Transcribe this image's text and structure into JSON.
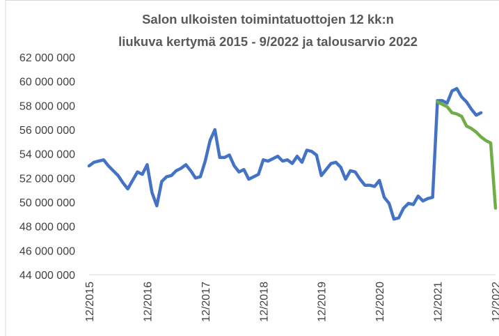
{
  "chart_data": {
    "type": "line",
    "title": [
      "Salon ulkoisten toimintatuottojen 12 kk:n",
      "liukuva kertymä 2015 - 9/2022 ja talousarvio 2022"
    ],
    "categories": [
      "12/2015",
      null,
      null,
      null,
      null,
      null,
      null,
      null,
      null,
      null,
      null,
      null,
      "12/2016",
      null,
      null,
      null,
      null,
      null,
      null,
      null,
      null,
      null,
      null,
      null,
      "12/2017",
      null,
      null,
      null,
      null,
      null,
      null,
      null,
      null,
      null,
      null,
      null,
      "12/2018",
      null,
      null,
      null,
      null,
      null,
      null,
      null,
      null,
      null,
      null,
      null,
      "12/2019",
      null,
      null,
      null,
      null,
      null,
      null,
      null,
      null,
      null,
      null,
      null,
      "12/2020",
      null,
      null,
      null,
      null,
      null,
      null,
      null,
      null,
      null,
      null,
      null,
      "12/2021",
      null,
      null,
      null,
      null,
      null,
      null,
      null,
      null,
      null,
      null,
      null,
      "12/2022"
    ],
    "series": [
      {
        "color": "#4472c4",
        "values": [
          53000000,
          53300000,
          53400000,
          53500000,
          53000000,
          52600000,
          52200000,
          51600000,
          51100000,
          51800000,
          52500000,
          52300000,
          53100000,
          50800000,
          49700000,
          51700000,
          52100000,
          52200000,
          52600000,
          52800000,
          53100000,
          52600000,
          52000000,
          52100000,
          53400000,
          55100000,
          56000000,
          53700000,
          53700000,
          53900000,
          53000000,
          52500000,
          52700000,
          51900000,
          52100000,
          52300000,
          53500000,
          53400000,
          53600000,
          53800000,
          53400000,
          53500000,
          53200000,
          53800000,
          53300000,
          54300000,
          54200000,
          53900000,
          52200000,
          52700000,
          53200000,
          53300000,
          52900000,
          51900000,
          52600000,
          52500000,
          51900000,
          51400000,
          51400000,
          51300000,
          51800000,
          50400000,
          49900000,
          48600000,
          48700000,
          49500000,
          49900000,
          49800000,
          50500000,
          50100000,
          50300000,
          50400000,
          58400000,
          58400000,
          58200000,
          59200000,
          59400000,
          58700000,
          58300000,
          57700000,
          57200000,
          57400000,
          null,
          null,
          null
        ]
      },
      {
        "color": "#70ad47",
        "values": [
          null,
          null,
          null,
          null,
          null,
          null,
          null,
          null,
          null,
          null,
          null,
          null,
          null,
          null,
          null,
          null,
          null,
          null,
          null,
          null,
          null,
          null,
          null,
          null,
          null,
          null,
          null,
          null,
          null,
          null,
          null,
          null,
          null,
          null,
          null,
          null,
          null,
          null,
          null,
          null,
          null,
          null,
          null,
          null,
          null,
          null,
          null,
          null,
          null,
          null,
          null,
          null,
          null,
          null,
          null,
          null,
          null,
          null,
          null,
          null,
          null,
          null,
          null,
          null,
          null,
          null,
          null,
          null,
          null,
          null,
          null,
          null,
          58300000,
          58100000,
          57900000,
          57400000,
          57300000,
          57100000,
          56300000,
          56100000,
          55800000,
          55400000,
          55100000,
          54900000,
          49500000
        ]
      }
    ],
    "ylim": [
      44000000,
      62000000
    ],
    "yticks": [
      {
        "value": 44000000,
        "label": "44 000 000"
      },
      {
        "value": 46000000,
        "label": "46 000 000"
      },
      {
        "value": 48000000,
        "label": "48 000 000"
      },
      {
        "value": 50000000,
        "label": "50 000 000"
      },
      {
        "value": 52000000,
        "label": "52 000 000"
      },
      {
        "value": 54000000,
        "label": "54 000 000"
      },
      {
        "value": 56000000,
        "label": "56 000 000"
      },
      {
        "value": 58000000,
        "label": "58 000 000"
      },
      {
        "value": 60000000,
        "label": "60 000 000"
      },
      {
        "value": 62000000,
        "label": "62 000 000"
      }
    ],
    "grid": false
  }
}
